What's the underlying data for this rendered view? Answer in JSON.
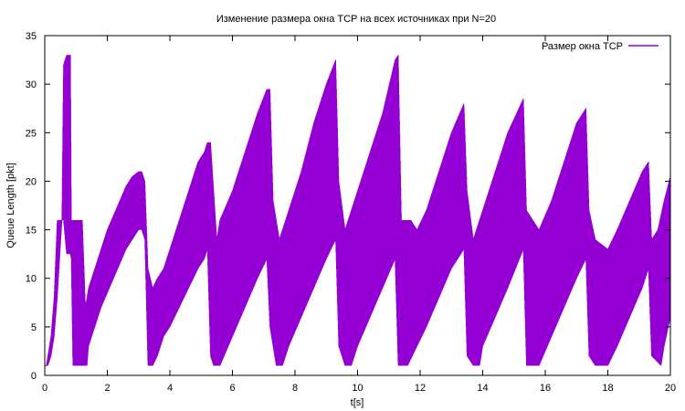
{
  "chart_data": {
    "type": "line",
    "title": "Изменение размера окна TCP на всех источниках при N=20",
    "xlabel": "t[s]",
    "ylabel": "Queue Length [pkt]",
    "xlim": [
      0,
      20
    ],
    "ylim": [
      0,
      35
    ],
    "x_ticks": [
      0,
      2,
      4,
      6,
      8,
      10,
      12,
      14,
      16,
      18,
      20
    ],
    "y_ticks": [
      0,
      5,
      10,
      15,
      20,
      25,
      30,
      35
    ],
    "x_tick_labels": [
      "0",
      "2",
      "4",
      "6",
      "8",
      "10",
      "12",
      "14",
      "16",
      "18",
      "20"
    ],
    "y_tick_labels": [
      "0",
      "5",
      "10",
      "15",
      "20",
      "25",
      "30",
      "35"
    ],
    "grid": false,
    "legend_position": "top-right",
    "series": [
      {
        "name": "Размер окна TCP",
        "color": "#9400d3",
        "envelope_top": [
          [
            0.0,
            1
          ],
          [
            0.05,
            1
          ],
          [
            0.1,
            2
          ],
          [
            0.2,
            4
          ],
          [
            0.3,
            8
          ],
          [
            0.4,
            16
          ],
          [
            0.55,
            16
          ],
          [
            0.6,
            32
          ],
          [
            0.7,
            33
          ],
          [
            0.82,
            33
          ],
          [
            0.85,
            16
          ],
          [
            1.2,
            16
          ],
          [
            1.3,
            7
          ],
          [
            1.4,
            9
          ],
          [
            1.6,
            11
          ],
          [
            1.8,
            13
          ],
          [
            2.0,
            15
          ],
          [
            2.2,
            16.5
          ],
          [
            2.4,
            18
          ],
          [
            2.6,
            19.5
          ],
          [
            2.8,
            20.5
          ],
          [
            3.0,
            21
          ],
          [
            3.1,
            21
          ],
          [
            3.2,
            20
          ],
          [
            3.3,
            11
          ],
          [
            3.45,
            9
          ],
          [
            3.6,
            10
          ],
          [
            3.8,
            11
          ],
          [
            4.0,
            13
          ],
          [
            4.3,
            16
          ],
          [
            4.6,
            19
          ],
          [
            4.9,
            22
          ],
          [
            5.1,
            23
          ],
          [
            5.2,
            24
          ],
          [
            5.3,
            24
          ],
          [
            5.5,
            14
          ],
          [
            5.6,
            16
          ],
          [
            6.0,
            19
          ],
          [
            6.4,
            23
          ],
          [
            6.8,
            27
          ],
          [
            7.1,
            29.5
          ],
          [
            7.2,
            29.5
          ],
          [
            7.3,
            18
          ],
          [
            7.5,
            14
          ],
          [
            7.8,
            17
          ],
          [
            8.2,
            21
          ],
          [
            8.6,
            26
          ],
          [
            9.0,
            30
          ],
          [
            9.3,
            32.5
          ],
          [
            9.4,
            20
          ],
          [
            9.6,
            15
          ],
          [
            10.0,
            19
          ],
          [
            10.4,
            23
          ],
          [
            10.8,
            27
          ],
          [
            11.2,
            32.5
          ],
          [
            11.3,
            33
          ],
          [
            11.4,
            16
          ],
          [
            11.7,
            16
          ],
          [
            11.9,
            15
          ],
          [
            12.2,
            17
          ],
          [
            12.6,
            21
          ],
          [
            13.0,
            25
          ],
          [
            13.4,
            28
          ],
          [
            13.5,
            19
          ],
          [
            13.7,
            14
          ],
          [
            14.0,
            17
          ],
          [
            14.4,
            21
          ],
          [
            14.8,
            25
          ],
          [
            15.3,
            28.5
          ],
          [
            15.4,
            17
          ],
          [
            15.8,
            15
          ],
          [
            16.2,
            18
          ],
          [
            16.6,
            22
          ],
          [
            17.0,
            26
          ],
          [
            17.3,
            27.5
          ],
          [
            17.4,
            17
          ],
          [
            17.6,
            14
          ],
          [
            18.0,
            13
          ],
          [
            18.3,
            15
          ],
          [
            18.7,
            18
          ],
          [
            19.1,
            21
          ],
          [
            19.3,
            22
          ],
          [
            19.4,
            14
          ],
          [
            19.6,
            15
          ],
          [
            19.8,
            18
          ],
          [
            20.0,
            20.5
          ]
        ],
        "envelope_bottom": [
          [
            0.0,
            1
          ],
          [
            0.05,
            1
          ],
          [
            0.1,
            1
          ],
          [
            0.2,
            2
          ],
          [
            0.3,
            4
          ],
          [
            0.4,
            8
          ],
          [
            0.55,
            16
          ],
          [
            0.6,
            16
          ],
          [
            0.7,
            12.5
          ],
          [
            0.82,
            12.5
          ],
          [
            0.85,
            12
          ],
          [
            0.9,
            1
          ],
          [
            1.35,
            1
          ],
          [
            1.4,
            3
          ],
          [
            1.6,
            5
          ],
          [
            1.8,
            7
          ],
          [
            2.0,
            8.5
          ],
          [
            2.2,
            10
          ],
          [
            2.4,
            11.5
          ],
          [
            2.6,
            13
          ],
          [
            2.8,
            14
          ],
          [
            3.0,
            15
          ],
          [
            3.1,
            15
          ],
          [
            3.2,
            14
          ],
          [
            3.3,
            1
          ],
          [
            3.45,
            1
          ],
          [
            3.6,
            2
          ],
          [
            3.8,
            4
          ],
          [
            4.0,
            5
          ],
          [
            4.3,
            7
          ],
          [
            4.6,
            9
          ],
          [
            4.9,
            11
          ],
          [
            5.1,
            12
          ],
          [
            5.2,
            13
          ],
          [
            5.3,
            2
          ],
          [
            5.4,
            1
          ],
          [
            5.6,
            1
          ],
          [
            6.0,
            4
          ],
          [
            6.4,
            7
          ],
          [
            6.8,
            10
          ],
          [
            7.1,
            12
          ],
          [
            7.2,
            5
          ],
          [
            7.4,
            1
          ],
          [
            7.6,
            1
          ],
          [
            7.8,
            3
          ],
          [
            8.2,
            6
          ],
          [
            8.6,
            9
          ],
          [
            9.0,
            12
          ],
          [
            9.3,
            14
          ],
          [
            9.4,
            3
          ],
          [
            9.6,
            1
          ],
          [
            9.8,
            1
          ],
          [
            10.0,
            3
          ],
          [
            10.4,
            6
          ],
          [
            10.8,
            9
          ],
          [
            11.2,
            12
          ],
          [
            11.3,
            1
          ],
          [
            11.6,
            1
          ],
          [
            11.9,
            3
          ],
          [
            12.2,
            5
          ],
          [
            12.6,
            8
          ],
          [
            13.0,
            11
          ],
          [
            13.4,
            13
          ],
          [
            13.5,
            2
          ],
          [
            13.7,
            1
          ],
          [
            13.9,
            1
          ],
          [
            14.0,
            3
          ],
          [
            14.4,
            6
          ],
          [
            14.8,
            9
          ],
          [
            15.3,
            13
          ],
          [
            15.4,
            1
          ],
          [
            15.8,
            1
          ],
          [
            16.2,
            4
          ],
          [
            16.6,
            7
          ],
          [
            17.0,
            10
          ],
          [
            17.3,
            12
          ],
          [
            17.4,
            2
          ],
          [
            17.6,
            1
          ],
          [
            18.0,
            1
          ],
          [
            18.3,
            3
          ],
          [
            18.7,
            6
          ],
          [
            19.1,
            9
          ],
          [
            19.3,
            11
          ],
          [
            19.4,
            2
          ],
          [
            19.7,
            1
          ],
          [
            19.8,
            3
          ],
          [
            20.0,
            6
          ]
        ]
      }
    ]
  }
}
